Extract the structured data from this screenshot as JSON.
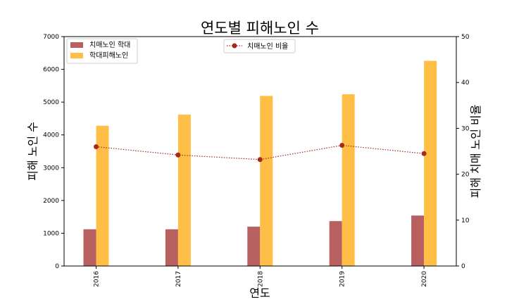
{
  "chart_data": {
    "type": "bar+line",
    "title": "연도별 피해노인 수",
    "xlabel": "연도",
    "ylabel_left": "피해 노인 수",
    "ylabel_right": "피해 치매 노인 비율",
    "categories": [
      "2016",
      "2017",
      "2018",
      "2019",
      "2020"
    ],
    "ylim_left": [
      0,
      7000
    ],
    "ylim_right": [
      0,
      50
    ],
    "yticks_left": [
      0,
      1000,
      2000,
      3000,
      4000,
      5000,
      6000,
      7000
    ],
    "yticks_right": [
      0,
      10,
      20,
      30,
      40,
      50
    ],
    "bar_series": [
      {
        "name": "치매노인 학대",
        "color": "#b85f5f",
        "values": [
          1120,
          1120,
          1200,
          1370,
          1540
        ]
      },
      {
        "name": "학대피해노인",
        "color": "#ffbf47",
        "values": [
          4280,
          4620,
          5190,
          5240,
          6260
        ]
      }
    ],
    "line_series": {
      "name": "치매노인 비율",
      "color": "#a52a1e",
      "values": [
        26.0,
        24.2,
        23.2,
        26.3,
        24.5
      ]
    },
    "grid": false,
    "legend_bars": "top-left",
    "legend_line": "top-center"
  }
}
